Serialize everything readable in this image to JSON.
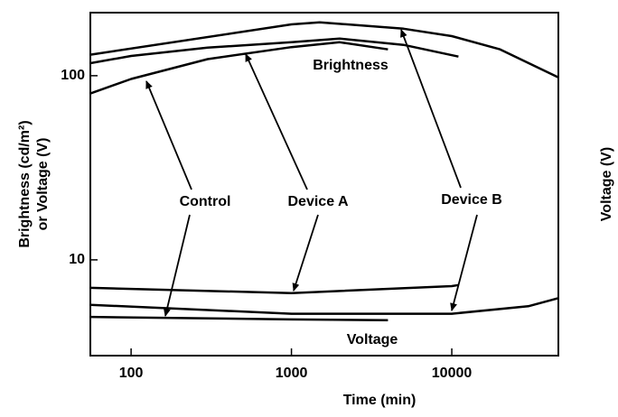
{
  "chart_data": {
    "type": "line",
    "xlabel": "Time (min)",
    "ylabel": [
      "Brightness (cd/m²)",
      "or Voltage (V)"
    ],
    "y2label": "Voltage (V)",
    "xscale": "log",
    "yscale": "log",
    "xlim": [
      55.7,
      46200
    ],
    "ylim": [
      3.02,
      220
    ],
    "xticks": [
      100,
      1000,
      10000
    ],
    "yticks": [
      10,
      100
    ],
    "annotations": [
      "Brightness",
      "Control",
      "Device A",
      "Device B",
      "Voltage"
    ],
    "series": [
      {
        "color": "#000000",
        "x": [
          55.7,
          1000,
          1500,
          5000,
          10000,
          20000,
          46200
        ],
        "values": [
          130,
          190,
          195,
          180,
          164,
          139,
          98
        ]
      },
      {
        "color": "#000000",
        "x": [
          55.7,
          100,
          300,
          1000,
          2000,
          5000,
          11000
        ],
        "values": [
          117,
          128,
          142,
          152,
          159,
          147,
          127
        ]
      },
      {
        "color": "#000000",
        "x": [
          55.7,
          100,
          300,
          1000,
          2000,
          4000
        ],
        "values": [
          80,
          96,
          123,
          143,
          152,
          139
        ]
      },
      {
        "color": "#000000",
        "x": [
          55.7,
          1000,
          10000,
          11000
        ],
        "values": [
          7.05,
          6.6,
          7.2,
          7.3
        ]
      },
      {
        "color": "#000000",
        "x": [
          55.7,
          1000,
          10000,
          30000,
          46200
        ],
        "values": [
          5.7,
          5.1,
          5.1,
          5.6,
          6.2
        ]
      },
      {
        "color": "#000000",
        "x": [
          55.7,
          1000,
          4000
        ],
        "values": [
          4.9,
          4.75,
          4.7
        ]
      }
    ]
  }
}
